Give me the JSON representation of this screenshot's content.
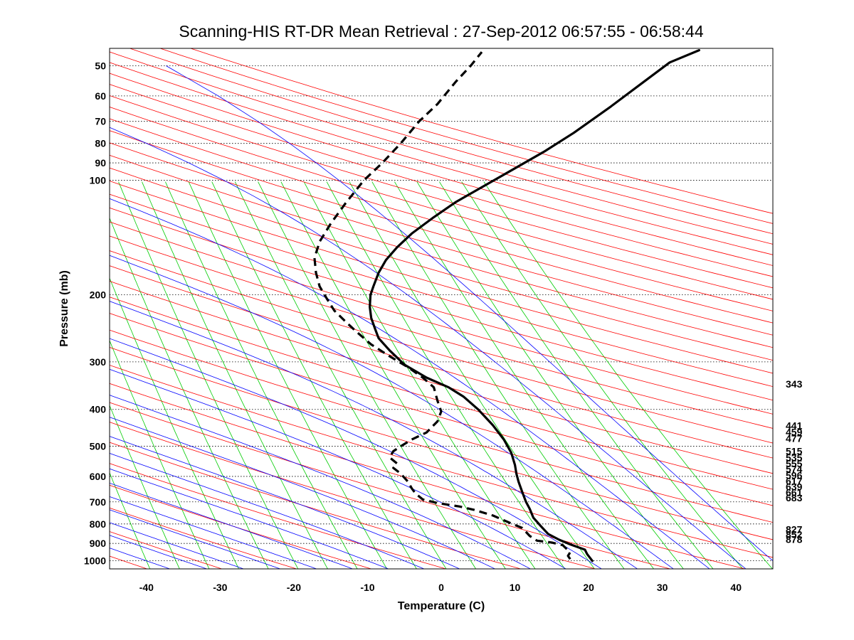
{
  "chart_data": {
    "type": "line",
    "title": "Scanning-HIS RT-DR Mean Retrieval : 27-Sep-2012 06:57:55 - 06:58:44",
    "xlabel": "Temperature (C)",
    "ylabel": "Pressure (mb)",
    "xlim": [
      -45,
      45
    ],
    "ylim": [
      1050,
      45
    ],
    "y_scale": "log",
    "x_ticks": [
      "-40",
      "-30",
      "-20",
      "-10",
      "0",
      "10",
      "20",
      "30",
      "40"
    ],
    "y_ticks": [
      "50",
      "60",
      "70",
      "80",
      "90",
      "100",
      "200",
      "300",
      "400",
      "500",
      "600",
      "700",
      "800",
      "900",
      "1000"
    ],
    "grid": "dotted horizontal isobars",
    "background_lines": {
      "dry_adiabats_color": "#ff0000",
      "moist_adiabats_color": "#0000ff",
      "mixing_ratio_color": "#00cc00",
      "dry_adiabat_thetas_K": [
        220,
        230,
        240,
        250,
        260,
        270,
        280,
        290,
        300,
        310,
        320,
        330,
        340,
        350,
        360,
        370,
        380,
        390,
        400,
        410,
        420,
        430,
        440,
        450,
        460,
        470,
        480,
        490,
        500,
        510,
        520,
        530,
        540,
        550,
        560,
        570,
        580
      ],
      "moist_adiabat_start_T_C": [
        -40,
        -35,
        -30,
        -25,
        -20,
        -15,
        -10,
        -5,
        0,
        5,
        10,
        15,
        20,
        25,
        30,
        35,
        40,
        45
      ],
      "mixing_ratio_start_T_C": [
        -40,
        -36,
        -32,
        -28,
        -24,
        -20,
        -16,
        -12,
        -8,
        -4,
        0,
        4,
        8,
        12,
        16,
        20,
        24,
        28,
        32,
        36,
        40,
        44
      ]
    },
    "series": [
      {
        "style": "solid",
        "color": "#000000",
        "points": [
          [
            20.5,
            1000
          ],
          [
            19.8,
            960
          ],
          [
            19.5,
            935
          ],
          [
            18.5,
            920
          ],
          [
            17.5,
            905
          ],
          [
            16,
            880
          ],
          [
            14.5,
            850
          ],
          [
            13.5,
            810
          ],
          [
            12.5,
            770
          ],
          [
            12,
            730
          ],
          [
            11.5,
            700
          ],
          [
            11,
            660
          ],
          [
            10.5,
            620
          ],
          [
            10.2,
            590
          ],
          [
            10,
            560
          ],
          [
            9.5,
            520
          ],
          [
            8.5,
            480
          ],
          [
            7,
            440
          ],
          [
            5,
            400
          ],
          [
            3,
            370
          ],
          [
            1,
            350
          ],
          [
            -2,
            330
          ],
          [
            -5,
            305
          ],
          [
            -7,
            280
          ],
          [
            -8.5,
            260
          ],
          [
            -9,
            245
          ],
          [
            -9.5,
            230
          ],
          [
            -9.7,
            215
          ],
          [
            -9.6,
            200
          ],
          [
            -9.2,
            190
          ],
          [
            -8.5,
            175
          ],
          [
            -7.5,
            162
          ],
          [
            -6,
            150
          ],
          [
            -4,
            138
          ],
          [
            -1,
            125
          ],
          [
            2,
            114
          ],
          [
            6,
            103
          ],
          [
            10,
            93
          ],
          [
            14,
            84
          ],
          [
            18,
            75
          ],
          [
            23,
            64
          ],
          [
            27,
            56
          ],
          [
            31,
            49
          ],
          [
            35,
            45.5
          ]
        ]
      },
      {
        "style": "dashed",
        "color": "#000000",
        "points": [
          [
            17.5,
            990
          ],
          [
            17.2,
            970
          ],
          [
            17.5,
            950
          ],
          [
            17,
            930
          ],
          [
            16.5,
            910
          ],
          [
            15,
            895
          ],
          [
            13,
            885
          ],
          [
            12,
            860
          ],
          [
            11,
            820
          ],
          [
            9,
            790
          ],
          [
            7,
            760
          ],
          [
            4.5,
            735
          ],
          [
            2.5,
            720
          ],
          [
            -0.5,
            705
          ],
          [
            -2.5,
            690
          ],
          [
            -3.5,
            665
          ],
          [
            -4,
            645
          ],
          [
            -4.5,
            620
          ],
          [
            -5.5,
            590
          ],
          [
            -6.5,
            570
          ],
          [
            -6,
            555
          ],
          [
            -7,
            535
          ],
          [
            -6.5,
            515
          ],
          [
            -5.5,
            500
          ],
          [
            -4,
            480
          ],
          [
            -2,
            460
          ],
          [
            -0.5,
            430
          ],
          [
            0,
            405
          ],
          [
            -0.5,
            380
          ],
          [
            -1,
            350
          ],
          [
            -2.5,
            330
          ],
          [
            -4.5,
            310
          ],
          [
            -7,
            290
          ],
          [
            -9.5,
            270
          ],
          [
            -11.5,
            250
          ],
          [
            -13,
            235
          ],
          [
            -14.5,
            220
          ],
          [
            -15.5,
            205
          ],
          [
            -16.5,
            190
          ],
          [
            -17,
            175
          ],
          [
            -17.2,
            160
          ],
          [
            -16.5,
            145
          ],
          [
            -15,
            130
          ],
          [
            -13,
            115
          ],
          [
            -10.5,
            100
          ],
          [
            -8,
            90
          ],
          [
            -5.5,
            80
          ],
          [
            -3,
            70
          ],
          [
            -0.5,
            63
          ],
          [
            2,
            55
          ],
          [
            4,
            50
          ],
          [
            5.5,
            46
          ]
        ]
      }
    ],
    "right_pressure_labels": [
      "343",
      "441",
      "459",
      "477",
      "515",
      "535",
      "555",
      "574",
      "596",
      "617",
      "639",
      "661",
      "683",
      "827",
      "852",
      "878"
    ],
    "right_pressure_values": [
      343,
      441,
      459,
      477,
      515,
      535,
      555,
      574,
      596,
      617,
      639,
      661,
      683,
      827,
      852,
      878
    ]
  }
}
